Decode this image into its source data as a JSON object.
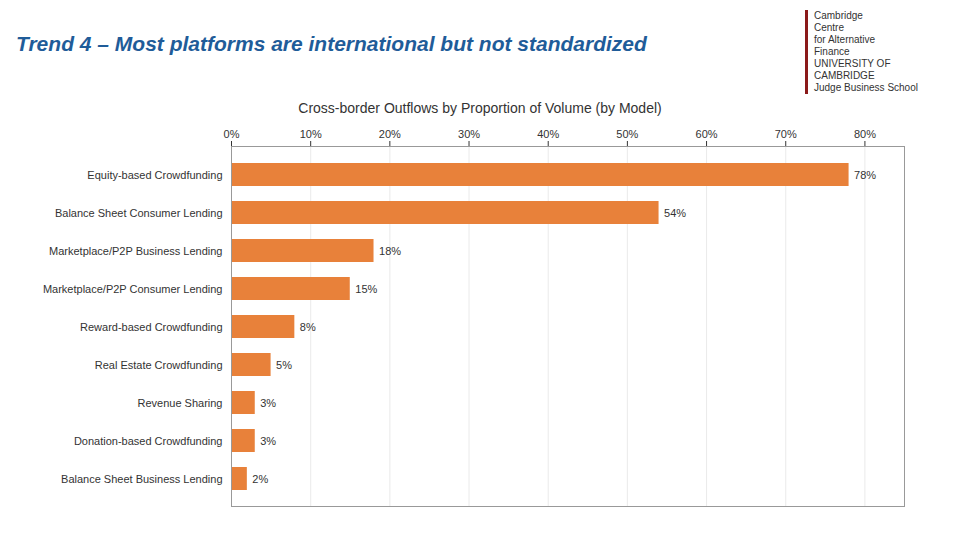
{
  "chart_data": {
    "type": "bar",
    "orientation": "horizontal",
    "title": "Trend 4 – Most platforms are international but not standardized",
    "subtitle": "Cross-border Outflows by Proportion of Volume (by Model)",
    "categories": [
      "Equity-based Crowdfunding",
      "Balance Sheet Consumer Lending",
      "Marketplace/P2P Business Lending",
      "Marketplace/P2P Consumer Lending",
      "Reward-based Crowdfunding",
      "Real Estate Crowdfunding",
      "Revenue Sharing",
      "Donation-based Crowdfunding",
      "Balance Sheet Business Lending"
    ],
    "values": [
      78,
      54,
      18,
      15,
      8,
      5,
      3,
      3,
      2
    ],
    "value_labels": [
      "78%",
      "54%",
      "18%",
      "15%",
      "8%",
      "5%",
      "3%",
      "3%",
      "2%"
    ],
    "data_labels": true,
    "color": "#E8813A",
    "xlim": [
      0,
      85
    ],
    "xticks": [
      {
        "value": 0,
        "label": "0%"
      },
      {
        "value": 10,
        "label": "10%"
      },
      {
        "value": 20,
        "label": "20%"
      },
      {
        "value": 30,
        "label": "30%"
      },
      {
        "value": 40,
        "label": "40%"
      },
      {
        "value": 50,
        "label": "50%"
      },
      {
        "value": 60,
        "label": "60%"
      },
      {
        "value": 70,
        "label": "70%"
      },
      {
        "value": 80,
        "label": "80%"
      }
    ],
    "grid": true,
    "annotations": [
      "Cambridge",
      "Centre",
      "for Alternative",
      "Finance",
      "UNIVERSITY OF",
      "CAMBRIDGE",
      "Judge Business School"
    ]
  }
}
